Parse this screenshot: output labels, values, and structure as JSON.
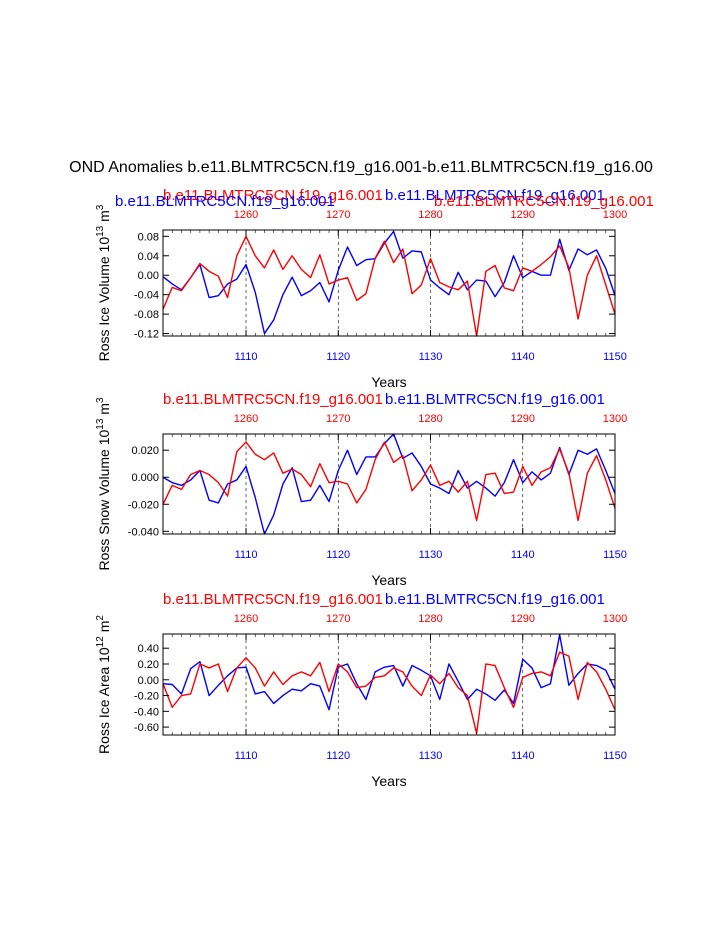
{
  "figure": {
    "title": "OND Anomalies b.e11.BLMTRC5CN.f19_g16.001-b.e11.BLMTRC5CN.f19_g16.00",
    "colors": {
      "bottom_series": "#0000ff",
      "top_series": "#ff0000",
      "axis": "#000000"
    }
  },
  "chart_data": [
    {
      "type": "line",
      "ylabel": "Ross Ice Volume 10",
      "ylabel_exp": "13",
      "ylabel_unit": " m",
      "ylabel_unit_exp": "3",
      "xlabel": "Years",
      "top_label_left": "b.e11.BLMTRC5CN.f19_g16.001",
      "top_label_right": "b.e11.BLMTRC5CN.f19_g16.001",
      "title_left": "b.e11.BLMTRC5CN.f19_g16.001",
      "title_right": "b.e11.BLMTRC5CN.f19_g16.001",
      "xlim_bottom": [
        1101,
        1150
      ],
      "xlim_top": [
        1251,
        1300
      ],
      "ylim": [
        -0.125,
        0.093
      ],
      "yticks": [
        -0.12,
        -0.08,
        -0.04,
        0.0,
        0.04,
        0.08
      ],
      "ytick_labels": [
        "-0.12",
        "-0.08",
        "-0.04",
        "0.00",
        "0.04",
        "0.08"
      ],
      "xticks_bottom": [
        "1110",
        "1120",
        "1130",
        "1140",
        "1150"
      ],
      "xticks_top": [
        "1260",
        "1270",
        "1280",
        "1290",
        "1300"
      ],
      "series": [
        {
          "name": "b.e11.BLMTRC5CN.f19_g16.001 (years 1101-1150)",
          "axis": "bottom",
          "color": "#0000ff",
          "values": [
            -0.003,
            -0.018,
            -0.03,
            -0.005,
            0.022,
            -0.046,
            -0.042,
            -0.018,
            -0.008,
            0.022,
            -0.035,
            -0.12,
            -0.092,
            -0.04,
            -0.004,
            -0.042,
            -0.032,
            -0.015,
            -0.055,
            0.01,
            0.058,
            0.02,
            0.032,
            0.034,
            0.066,
            0.09,
            0.035,
            0.05,
            0.048,
            -0.01,
            -0.026,
            -0.04,
            0.006,
            -0.03,
            -0.01,
            -0.012,
            -0.044,
            -0.015,
            0.04,
            -0.005,
            0.008,
            0.0,
            0.0,
            0.074,
            0.01,
            0.054,
            0.042,
            0.052,
            0.014,
            -0.042
          ]
        },
        {
          "name": "b.e11.BLMTRC5CN.f19_g16.001 (years 1251-1300)",
          "axis": "top",
          "color": "#ff0000",
          "values": [
            -0.07,
            -0.025,
            -0.032,
            -0.005,
            0.024,
            0.008,
            -0.002,
            -0.046,
            0.04,
            0.08,
            0.04,
            0.015,
            0.052,
            0.012,
            0.04,
            0.012,
            -0.005,
            0.042,
            -0.018,
            -0.01,
            -0.005,
            -0.052,
            -0.038,
            0.035,
            0.07,
            0.026,
            0.054,
            -0.038,
            -0.02,
            0.034,
            -0.015,
            -0.024,
            -0.03,
            -0.012,
            -0.125,
            0.008,
            0.02,
            -0.026,
            -0.032,
            0.015,
            0.008,
            0.022,
            0.038,
            0.06,
            0.016,
            -0.09,
            0.0,
            0.04,
            -0.02,
            -0.08
          ]
        }
      ]
    },
    {
      "type": "line",
      "ylabel": "Ross Snow Volume 10",
      "ylabel_exp": "13",
      "ylabel_unit": " m",
      "ylabel_unit_exp": "3",
      "xlabel": "Years",
      "title_left": "b.e11.BLMTRC5CN.f19_g16.001",
      "title_right": "b.e11.BLMTRC5CN.f19_g16.001",
      "xlim_bottom": [
        1101,
        1150
      ],
      "xlim_top": [
        1251,
        1300
      ],
      "ylim": [
        -0.042,
        0.032
      ],
      "yticks": [
        -0.04,
        -0.02,
        0.0,
        0.02
      ],
      "ytick_labels": [
        "-0.040",
        "-0.020",
        "0.000",
        "0.020"
      ],
      "xticks_bottom": [
        "1110",
        "1120",
        "1130",
        "1140",
        "1150"
      ],
      "xticks_top": [
        "1260",
        "1270",
        "1280",
        "1290",
        "1300"
      ],
      "series": [
        {
          "name": "b.e11.BLMTRC5CN.f19_g16.001 (years 1101-1150)",
          "axis": "bottom",
          "color": "#0000ff",
          "values": [
            0.0,
            -0.004,
            -0.006,
            -0.002,
            0.005,
            -0.017,
            -0.019,
            -0.005,
            -0.002,
            0.008,
            -0.015,
            -0.042,
            -0.028,
            -0.005,
            0.007,
            -0.018,
            -0.017,
            -0.006,
            -0.018,
            0.005,
            0.02,
            0.002,
            0.015,
            0.015,
            0.025,
            0.032,
            0.014,
            0.018,
            0.008,
            -0.005,
            -0.008,
            -0.012,
            0.005,
            -0.008,
            -0.003,
            -0.008,
            -0.014,
            -0.004,
            0.013,
            -0.004,
            0.004,
            -0.002,
            0.003,
            0.022,
            0.002,
            0.02,
            0.017,
            0.021,
            0.005,
            -0.012
          ]
        },
        {
          "name": "b.e11.BLMTRC5CN.f19_g16.001 (years 1251-1300)",
          "axis": "top",
          "color": "#ff0000",
          "values": [
            -0.02,
            -0.006,
            -0.009,
            0.002,
            0.005,
            0.002,
            -0.004,
            -0.014,
            0.019,
            0.026,
            0.017,
            0.013,
            0.018,
            0.003,
            0.006,
            0.002,
            -0.007,
            0.01,
            -0.004,
            -0.003,
            -0.005,
            -0.019,
            -0.009,
            0.013,
            0.026,
            0.011,
            0.016,
            -0.01,
            -0.002,
            0.009,
            -0.006,
            -0.003,
            -0.011,
            -0.003,
            -0.032,
            0.002,
            0.003,
            -0.012,
            -0.011,
            0.008,
            -0.006,
            0.004,
            0.007,
            0.021,
            0.003,
            -0.032,
            0.003,
            0.016,
            -0.002,
            -0.023
          ]
        }
      ]
    },
    {
      "type": "line",
      "ylabel": "Ross Ice Area 10",
      "ylabel_exp": "12",
      "ylabel_unit": " m",
      "ylabel_unit_exp": "2",
      "xlabel": "Years",
      "title_left": "b.e11.BLMTRC5CN.f19_g16.001",
      "title_right": "b.e11.BLMTRC5CN.f19_g16.001",
      "xlim_bottom": [
        1101,
        1150
      ],
      "xlim_top": [
        1251,
        1300
      ],
      "ylim": [
        -0.7,
        0.58
      ],
      "yticks": [
        -0.6,
        -0.4,
        -0.2,
        0.0,
        0.2,
        0.4
      ],
      "ytick_labels": [
        "-0.60",
        "-0.40",
        "-0.20",
        "0.00",
        "0.20",
        "0.40"
      ],
      "xticks_bottom": [
        "1110",
        "1120",
        "1130",
        "1140",
        "1150"
      ],
      "xticks_top": [
        "1260",
        "1270",
        "1280",
        "1290",
        "1300"
      ],
      "series": [
        {
          "name": "b.e11.BLMTRC5CN.f19_g16.001 (years 1101-1150)",
          "axis": "bottom",
          "color": "#0000ff",
          "values": [
            -0.05,
            -0.06,
            -0.18,
            0.14,
            0.23,
            -0.2,
            -0.07,
            0.05,
            0.15,
            0.16,
            -0.18,
            -0.15,
            -0.3,
            -0.2,
            -0.12,
            -0.14,
            -0.05,
            -0.08,
            -0.38,
            0.16,
            0.2,
            -0.05,
            -0.25,
            0.1,
            0.16,
            0.18,
            -0.08,
            0.18,
            0.12,
            0.05,
            -0.25,
            0.2,
            -0.02,
            -0.25,
            -0.12,
            -0.18,
            -0.26,
            -0.13,
            -0.3,
            0.26,
            0.15,
            -0.1,
            -0.05,
            0.57,
            -0.07,
            0.08,
            0.2,
            0.18,
            0.12,
            -0.12
          ]
        },
        {
          "name": "b.e11.BLMTRC5CN.f19_g16.001 (years 1251-1300)",
          "axis": "top",
          "color": "#ff0000",
          "values": [
            -0.05,
            -0.35,
            -0.2,
            -0.18,
            0.2,
            0.15,
            0.2,
            -0.15,
            0.15,
            0.28,
            0.15,
            -0.08,
            0.1,
            -0.06,
            0.05,
            0.1,
            0.05,
            0.22,
            -0.15,
            0.2,
            0.1,
            -0.1,
            -0.08,
            0.03,
            0.05,
            0.15,
            0.1,
            -0.08,
            -0.2,
            0.06,
            -0.05,
            0.08,
            -0.1,
            -0.2,
            -0.68,
            0.2,
            0.18,
            -0.1,
            -0.35,
            0.03,
            0.08,
            0.1,
            0.05,
            0.35,
            0.3,
            -0.25,
            0.22,
            0.1,
            -0.12,
            -0.38
          ]
        }
      ]
    }
  ]
}
